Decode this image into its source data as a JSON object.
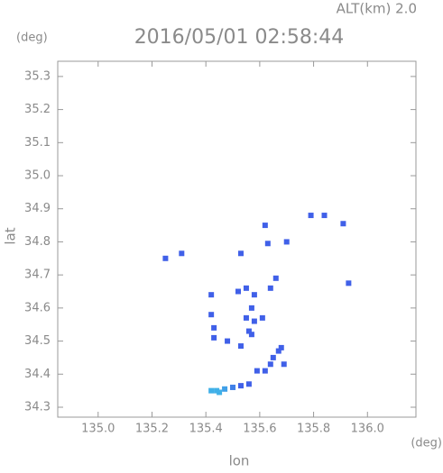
{
  "chart_data": {
    "type": "scatter",
    "altitude": "ALT(km) 2.0",
    "title": "2016/05/01 02:58:44",
    "y_unit": "(deg)",
    "x_unit": "(deg)",
    "y_label": "lat",
    "x_label": "lon",
    "xlim": [
      134.85,
      136.18
    ],
    "ylim": [
      34.27,
      35.346
    ],
    "xticks": [
      {
        "value": 135,
        "label": "135.0"
      },
      135.2,
      135.4,
      135.6,
      135.8,
      {
        "value": 136,
        "label": "136.0"
      }
    ],
    "yticks": [
      34.3,
      34.4,
      34.5,
      34.6,
      34.7,
      34.8,
      34.9,
      {
        "value": 35,
        "label": "35.0"
      },
      35.1,
      35.2,
      35.3
    ],
    "x": [
      135.25,
      135.31,
      135.62,
      135.79,
      135.84,
      135.91,
      135.63,
      135.7,
      135.53,
      135.93,
      135.42,
      135.52,
      135.55,
      135.58,
      135.66,
      135.64,
      135.57,
      135.58,
      135.55,
      135.56,
      135.61,
      135.57,
      135.43,
      135.43,
      135.42,
      135.48,
      135.53,
      135.67,
      135.68,
      135.65,
      135.64,
      135.69,
      135.62,
      135.59,
      135.56,
      135.53,
      135.5,
      135.47,
      135.44,
      135.42,
      135.45
    ],
    "values": [
      34.75,
      34.765,
      34.85,
      34.88,
      34.88,
      34.855,
      34.795,
      34.8,
      34.765,
      34.675,
      34.64,
      34.65,
      34.66,
      34.64,
      34.69,
      34.66,
      34.6,
      34.56,
      34.57,
      34.53,
      34.57,
      34.52,
      34.54,
      34.51,
      34.58,
      34.5,
      34.485,
      34.47,
      34.48,
      34.45,
      34.43,
      34.43,
      34.41,
      34.41,
      34.37,
      34.365,
      34.36,
      34.355,
      34.35,
      34.35,
      34.345
    ],
    "colors": [
      "#4060e8",
      "#4060e8",
      "#4060e8",
      "#4060e8",
      "#4060e8",
      "#4060e8",
      "#4060e8",
      "#4060e8",
      "#4060e8",
      "#4060e8",
      "#4060e8",
      "#4060e8",
      "#4060e8",
      "#4060e8",
      "#4060e8",
      "#4060e8",
      "#4060e8",
      "#4060e8",
      "#4060e8",
      "#4060e8",
      "#4060e8",
      "#4060e8",
      "#4060e8",
      "#4060e8",
      "#4060e8",
      "#4060e8",
      "#4060e8",
      "#4060e8",
      "#4060e8",
      "#4060e8",
      "#4060e8",
      "#4060e8",
      "#4060e8",
      "#4060e8",
      "#4060e8",
      "#4060e8",
      "#4080e8",
      "#40a0e8",
      "#40b0e8",
      "#40b0e8",
      "#40b0e8"
    ]
  }
}
